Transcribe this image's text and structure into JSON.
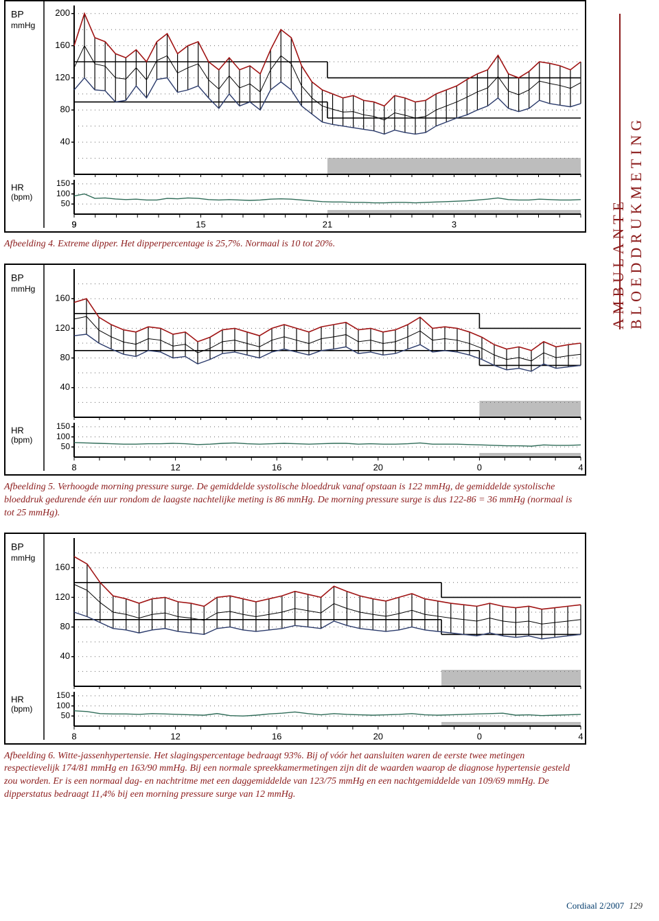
{
  "sidebar": {
    "title": "AMBULANTE BLOEDDRUKMETING"
  },
  "footer": {
    "journal": "Cordiaal 2/2007",
    "page": "129"
  },
  "captions": {
    "c4": "Afbeelding 4. Extreme dipper. Het dipperpercentage is 25,7%. Normaal is 10 tot 20%.",
    "c5": "Afbeelding 5. Verhoogde morning pressure surge. De gemiddelde systolische bloeddruk vanaf opstaan is 122 mmHg, de gemiddelde systolische bloeddruk gedurende één uur rondom de laagste nachtelijke meting is 86 mmHg. De morning pressure surge is dus 122-86 = 36 mmHg (normaal is tot 25 mmHg).",
    "c6": "Afbeelding 6. Witte-jassenhypertensie. Het slagingspercentage bedraagt 93%. Bij of vóór het aansluiten waren de eerste twee metingen respectievelijk 174/81 mmHg en 163/90 mmHg. Bij een normale spreekkamermetingen zijn dit de waarden waarop de diagnose hypertensie gesteld zou worden. Er is een normaal dag- en nachtritme met een daggemiddelde van 123/75 mmHg en een nachtgemiddelde van 109/69 mmHg. De dipperstatus bedraagt 11,4% bij een morning pressure surge van 12 mmHg."
  },
  "axis_labels": {
    "bp": "BP",
    "bp_unit": "mmHg",
    "hr": "HR",
    "hr_unit": "(bpm)"
  },
  "colors": {
    "systolic": "#a01414",
    "diastolic": "#2a3a6b",
    "hr": "#2e6b57",
    "grid_dot": "#666666",
    "ref_line": "#000000",
    "night_fill": "#bdbdbd",
    "frame": "#000000",
    "bg": "#ffffff"
  },
  "chart4": {
    "type": "line",
    "bp_ylim": [
      0,
      210
    ],
    "bp_ticks": [
      40,
      80,
      120,
      160,
      200
    ],
    "hr_ylim": [
      0,
      170
    ],
    "hr_ticks": [
      50,
      100,
      150
    ],
    "x_ticks": [
      9,
      15,
      21,
      3,
      9
    ],
    "x_hours": [
      9,
      10,
      11,
      12,
      13,
      14,
      15,
      16,
      17,
      18,
      19,
      20,
      21,
      22,
      23,
      0,
      1,
      2,
      3,
      4,
      5,
      6,
      7,
      8,
      9
    ],
    "night_start_hr": 21,
    "night_end_hr": 9,
    "ref_day_sys": 140,
    "ref_day_dia": 90,
    "ref_night_sys": 120,
    "ref_night_dia": 70,
    "systolic": [
      160,
      200,
      170,
      165,
      150,
      145,
      155,
      140,
      165,
      175,
      150,
      160,
      165,
      140,
      130,
      145,
      130,
      135,
      125,
      155,
      180,
      170,
      135,
      115,
      105,
      100,
      95,
      98,
      92,
      90,
      85,
      98,
      95,
      90,
      92,
      100,
      105,
      110,
      118,
      125,
      130,
      148,
      125,
      120,
      128,
      140,
      138,
      135,
      130,
      140
    ],
    "diastolic": [
      105,
      120,
      105,
      104,
      90,
      92,
      110,
      95,
      118,
      120,
      102,
      105,
      110,
      95,
      82,
      100,
      85,
      90,
      80,
      105,
      115,
      105,
      85,
      75,
      65,
      62,
      60,
      58,
      56,
      54,
      50,
      55,
      52,
      50,
      52,
      60,
      65,
      70,
      74,
      80,
      85,
      95,
      82,
      78,
      82,
      92,
      88,
      86,
      84,
      88
    ],
    "hr": [
      90,
      100,
      78,
      80,
      75,
      72,
      74,
      70,
      70,
      78,
      76,
      80,
      78,
      72,
      70,
      72,
      70,
      68,
      70,
      74,
      76,
      74,
      70,
      66,
      62,
      60,
      60,
      58,
      58,
      56,
      56,
      58,
      58,
      56,
      58,
      60,
      62,
      64,
      66,
      70,
      74,
      80,
      72,
      70,
      70,
      74,
      72,
      70,
      70,
      72
    ]
  },
  "chart5": {
    "type": "line",
    "bp_ylim": [
      0,
      200
    ],
    "bp_ticks": [
      40,
      80,
      120,
      160
    ],
    "hr_ylim": [
      0,
      170
    ],
    "hr_ticks": [
      50,
      100,
      150
    ],
    "x_ticks": [
      8,
      12,
      16,
      20,
      0,
      4
    ],
    "x_hours": [
      8,
      9,
      10,
      11,
      12,
      13,
      14,
      15,
      16,
      17,
      18,
      19,
      20,
      21,
      22,
      23,
      0,
      1,
      2,
      3,
      4
    ],
    "night_start_hr": 0,
    "night_end_hr": 4,
    "ref_day_sys": 140,
    "ref_day_dia": 90,
    "ref_night_sys": 120,
    "ref_night_dia": 70,
    "systolic": [
      155,
      160,
      135,
      125,
      118,
      115,
      122,
      120,
      112,
      115,
      102,
      108,
      118,
      120,
      115,
      110,
      120,
      125,
      120,
      115,
      122,
      125,
      128,
      118,
      120,
      115,
      118,
      125,
      135,
      120,
      122,
      120,
      115,
      108,
      98,
      92,
      95,
      90,
      102,
      95,
      98,
      100
    ],
    "diastolic": [
      110,
      112,
      100,
      92,
      85,
      82,
      90,
      88,
      80,
      82,
      72,
      78,
      86,
      88,
      84,
      80,
      88,
      92,
      88,
      84,
      90,
      92,
      95,
      86,
      88,
      84,
      86,
      92,
      98,
      88,
      90,
      88,
      84,
      78,
      70,
      64,
      66,
      62,
      72,
      66,
      68,
      70
    ],
    "hr": [
      72,
      70,
      68,
      66,
      64,
      64,
      66,
      66,
      68,
      66,
      62,
      64,
      68,
      70,
      66,
      64,
      66,
      68,
      66,
      64,
      66,
      68,
      68,
      64,
      66,
      64,
      64,
      66,
      70,
      64,
      64,
      64,
      62,
      60,
      58,
      56,
      56,
      54,
      60,
      58,
      58,
      60
    ]
  },
  "chart6": {
    "type": "line",
    "bp_ylim": [
      0,
      200
    ],
    "bp_ticks": [
      40,
      80,
      120,
      160
    ],
    "hr_ylim": [
      0,
      170
    ],
    "hr_ticks": [
      50,
      100,
      150
    ],
    "x_ticks": [
      8,
      12,
      16,
      20,
      0,
      4
    ],
    "x_hours": [
      8,
      9,
      10,
      11,
      12,
      13,
      14,
      15,
      16,
      17,
      18,
      19,
      20,
      21,
      22,
      23,
      0,
      1,
      2,
      3,
      4
    ],
    "night_start_hr": 22.5,
    "night_end_hr": 4,
    "ref_day_sys": 140,
    "ref_day_dia": 90,
    "ref_night_sys": 120,
    "ref_night_dia": 70,
    "systolic": [
      175,
      165,
      140,
      122,
      118,
      112,
      118,
      120,
      114,
      112,
      108,
      120,
      122,
      118,
      114,
      118,
      122,
      128,
      124,
      120,
      135,
      128,
      122,
      118,
      115,
      120,
      125,
      118,
      115,
      112,
      110,
      108,
      112,
      108,
      106,
      108,
      104,
      106,
      108,
      110
    ],
    "diastolic": [
      100,
      94,
      86,
      78,
      76,
      72,
      76,
      78,
      74,
      72,
      70,
      78,
      80,
      76,
      74,
      76,
      78,
      82,
      80,
      78,
      88,
      82,
      78,
      76,
      74,
      76,
      80,
      76,
      74,
      72,
      70,
      68,
      72,
      68,
      66,
      68,
      64,
      66,
      68,
      70
    ],
    "hr": [
      76,
      72,
      62,
      60,
      60,
      58,
      62,
      60,
      58,
      56,
      54,
      62,
      52,
      50,
      54,
      60,
      64,
      70,
      62,
      56,
      62,
      58,
      56,
      54,
      56,
      58,
      62,
      56,
      54,
      56,
      58,
      60,
      62,
      64,
      54,
      56,
      52,
      54,
      56,
      58
    ]
  }
}
